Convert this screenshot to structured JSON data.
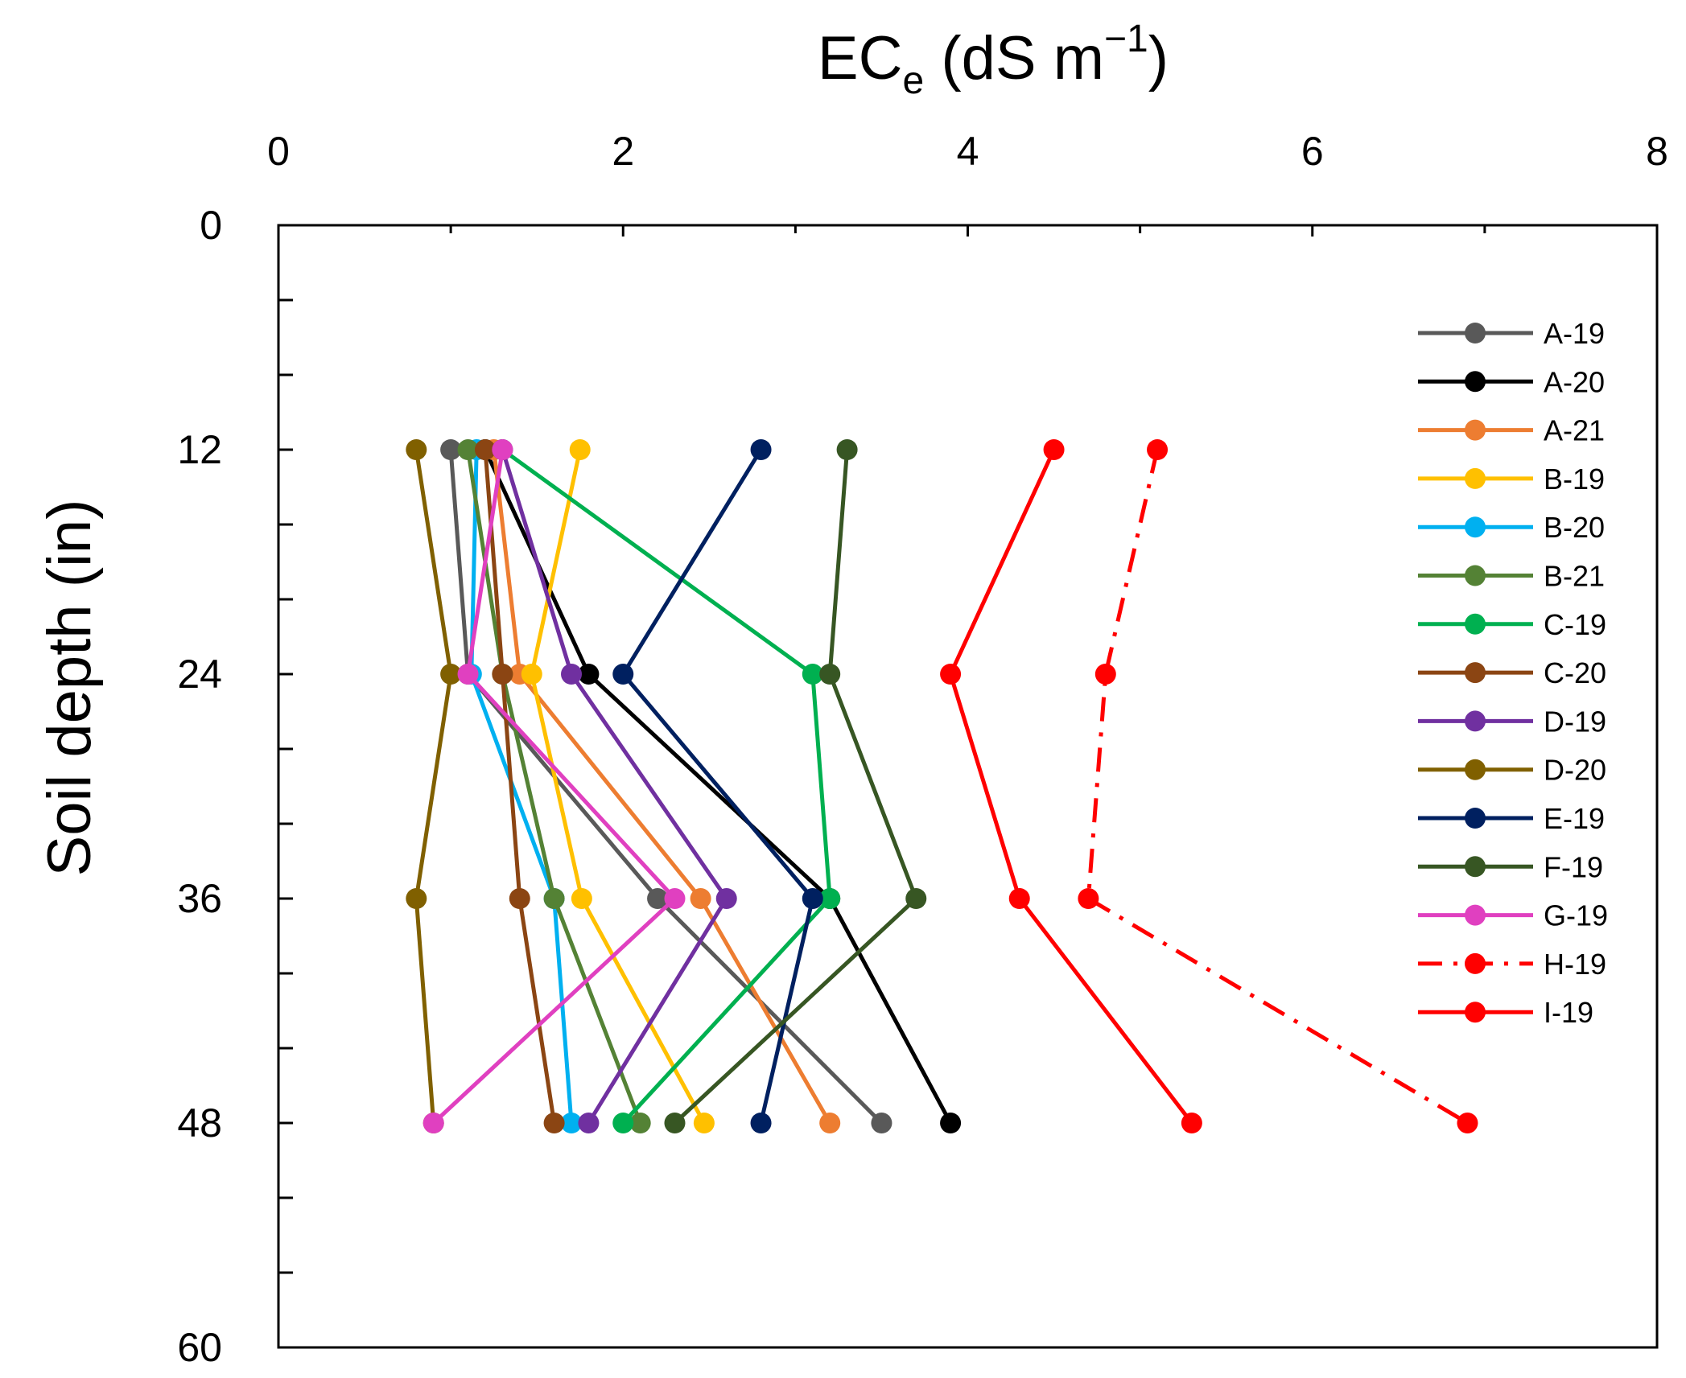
{
  "chart_data": {
    "type": "line",
    "title": "",
    "xlabel_main": "EC",
    "xlabel_sub": "e",
    "xlabel_unit_pre": " (dS m",
    "xlabel_sup": "−1",
    "xlabel_unit_post": ")",
    "ylabel": "Soil depth (in)",
    "xlim": [
      0,
      8
    ],
    "ylim": [
      0,
      60
    ],
    "y_inverted": true,
    "x_axis_position": "top",
    "x_ticks": [
      0,
      2,
      4,
      6,
      8
    ],
    "x_tick_labels": [
      "0",
      "2",
      "4",
      "6",
      "8"
    ],
    "x_minor_ticks": [
      1,
      3,
      5,
      7
    ],
    "y_ticks": [
      0,
      12,
      24,
      36,
      48,
      60
    ],
    "y_tick_labels": [
      "0",
      "12",
      "24",
      "36",
      "48",
      "60"
    ],
    "y_minor_ticks": [
      4,
      8,
      16,
      20,
      28,
      32,
      40,
      44,
      52,
      56
    ],
    "grid": false,
    "legend_position": "top-right, inside plot",
    "depths": [
      12,
      24,
      36,
      48
    ],
    "series": [
      {
        "name": "A-19",
        "color": "#595959",
        "dash": "solid",
        "values": [
          1.0,
          1.1,
          2.2,
          3.5
        ]
      },
      {
        "name": "A-20",
        "color": "#000000",
        "dash": "solid",
        "values": [
          1.2,
          1.8,
          3.2,
          3.9
        ]
      },
      {
        "name": "A-21",
        "color": "#ed7d31",
        "dash": "solid",
        "values": [
          1.25,
          1.4,
          2.45,
          3.2
        ]
      },
      {
        "name": "B-19",
        "color": "#ffc000",
        "dash": "solid",
        "values": [
          1.75,
          1.47,
          1.76,
          2.47
        ]
      },
      {
        "name": "B-20",
        "color": "#00b0f0",
        "dash": "solid",
        "values": [
          1.15,
          1.12,
          1.6,
          1.7
        ]
      },
      {
        "name": "B-21",
        "color": "#548235",
        "dash": "solid",
        "values": [
          1.1,
          1.3,
          1.6,
          2.1
        ]
      },
      {
        "name": "C-19",
        "color": "#00b050",
        "dash": "solid",
        "values": [
          1.3,
          3.1,
          3.2,
          2.0
        ]
      },
      {
        "name": "C-20",
        "color": "#8b4513",
        "dash": "solid",
        "values": [
          1.2,
          1.3,
          1.4,
          1.6
        ]
      },
      {
        "name": "D-19",
        "color": "#7030a0",
        "dash": "solid",
        "values": [
          1.3,
          1.7,
          2.6,
          1.8
        ]
      },
      {
        "name": "D-20",
        "color": "#806000",
        "dash": "solid",
        "values": [
          0.8,
          1.0,
          0.8,
          0.9
        ]
      },
      {
        "name": "E-19",
        "color": "#002060",
        "dash": "solid",
        "values": [
          2.8,
          2.0,
          3.1,
          2.8
        ]
      },
      {
        "name": "F-19",
        "color": "#375623",
        "dash": "solid",
        "values": [
          3.3,
          3.2,
          3.7,
          2.3
        ]
      },
      {
        "name": "G-19",
        "color": "#e040c0",
        "dash": "solid",
        "values": [
          1.3,
          1.1,
          2.3,
          0.9
        ]
      },
      {
        "name": "H-19",
        "color": "#ff0000",
        "dash": "dashdot",
        "values": [
          5.1,
          4.8,
          4.7,
          6.9
        ]
      },
      {
        "name": "I-19",
        "color": "#ff0000",
        "dash": "solid",
        "values": [
          4.5,
          3.9,
          4.3,
          5.3
        ]
      }
    ]
  }
}
